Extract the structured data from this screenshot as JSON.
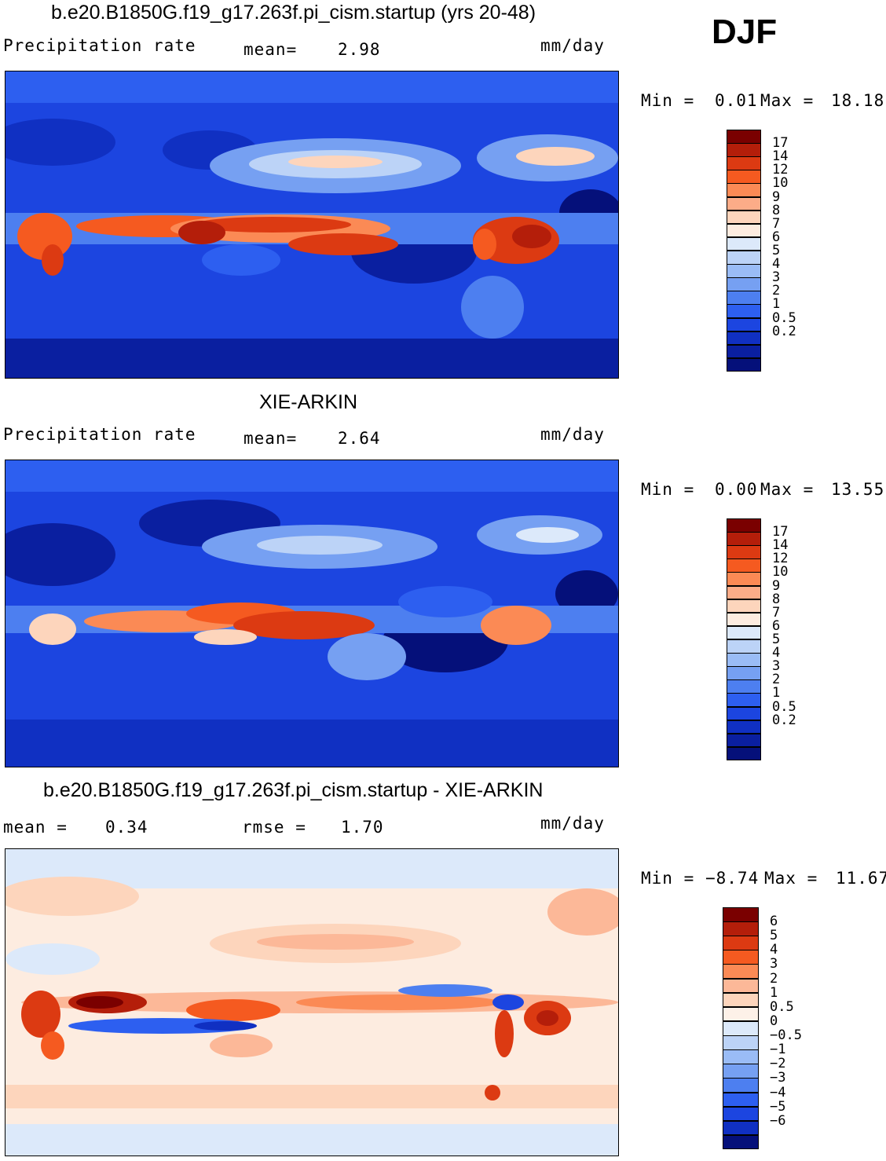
{
  "season": "DJF",
  "panels": [
    {
      "title": "b.e20.B1850G.f19_g17.263f.pi_cism.startup (yrs 20-48)",
      "variable": "Precipitation rate",
      "stat1_label": "mean=",
      "stat1_value": "2.98",
      "units": "mm/day",
      "min_label": "Min =",
      "min_value": "0.01",
      "max_label": "Max =",
      "max_value": "18.18",
      "colorbar": {
        "colors": [
          "#7a0000",
          "#b41e0a",
          "#dc3a12",
          "#f55a20",
          "#fb8a55",
          "#fcac88",
          "#fdd5bc",
          "#fdece0",
          "#dce9fa",
          "#bcd3f7",
          "#9abcf6",
          "#76a0f2",
          "#4d7ff0",
          "#2d5ff0",
          "#1c45e0",
          "#1030c2",
          "#0a1fa0",
          "#05107a"
        ],
        "labels": [
          "17",
          "14",
          "12",
          "10",
          "9",
          "8",
          "7",
          "6",
          "5",
          "4",
          "3",
          "2",
          "1",
          "0.5",
          "0.2"
        ]
      }
    },
    {
      "title": "XIE-ARKIN",
      "variable": "Precipitation rate",
      "stat1_label": "mean=",
      "stat1_value": "2.64",
      "units": "mm/day",
      "min_label": "Min =",
      "min_value": "0.00",
      "max_label": "Max =",
      "max_value": "13.55",
      "colorbar": {
        "colors": [
          "#7a0000",
          "#b41e0a",
          "#dc3a12",
          "#f55a20",
          "#fb8a55",
          "#fcac88",
          "#fdd5bc",
          "#fdece0",
          "#dce9fa",
          "#bcd3f7",
          "#9abcf6",
          "#76a0f2",
          "#4d7ff0",
          "#2d5ff0",
          "#1c45e0",
          "#1030c2",
          "#0a1fa0",
          "#05107a"
        ],
        "labels": [
          "17",
          "14",
          "12",
          "10",
          "9",
          "8",
          "7",
          "6",
          "5",
          "4",
          "3",
          "2",
          "1",
          "0.5",
          "0.2"
        ]
      }
    },
    {
      "title": "b.e20.B1850G.f19_g17.263f.pi_cism.startup - XIE-ARKIN",
      "stat1_label": "mean =",
      "stat1_value": "0.34",
      "stat2_label": "rmse =",
      "stat2_value": "1.70",
      "units": "mm/day",
      "min_label": "Min =",
      "min_value": "−8.74",
      "max_label": "Max =",
      "max_value": "11.67",
      "colorbar": {
        "colors": [
          "#7a0000",
          "#b41e0a",
          "#dc3a12",
          "#f55a20",
          "#fb8a55",
          "#fcb898",
          "#fdd5bc",
          "#fdf1e8",
          "#dce9fa",
          "#bcd3f7",
          "#9abcf6",
          "#76a0f2",
          "#4d7ff0",
          "#2d5ff0",
          "#1c45e0",
          "#1030c2",
          "#05107a"
        ],
        "labels": [
          "6",
          "5",
          "4",
          "3",
          "2",
          "1",
          "0.5",
          "0",
          "−0.5",
          "−1",
          "−2",
          "−3",
          "−4",
          "−5",
          "−6"
        ]
      }
    }
  ]
}
